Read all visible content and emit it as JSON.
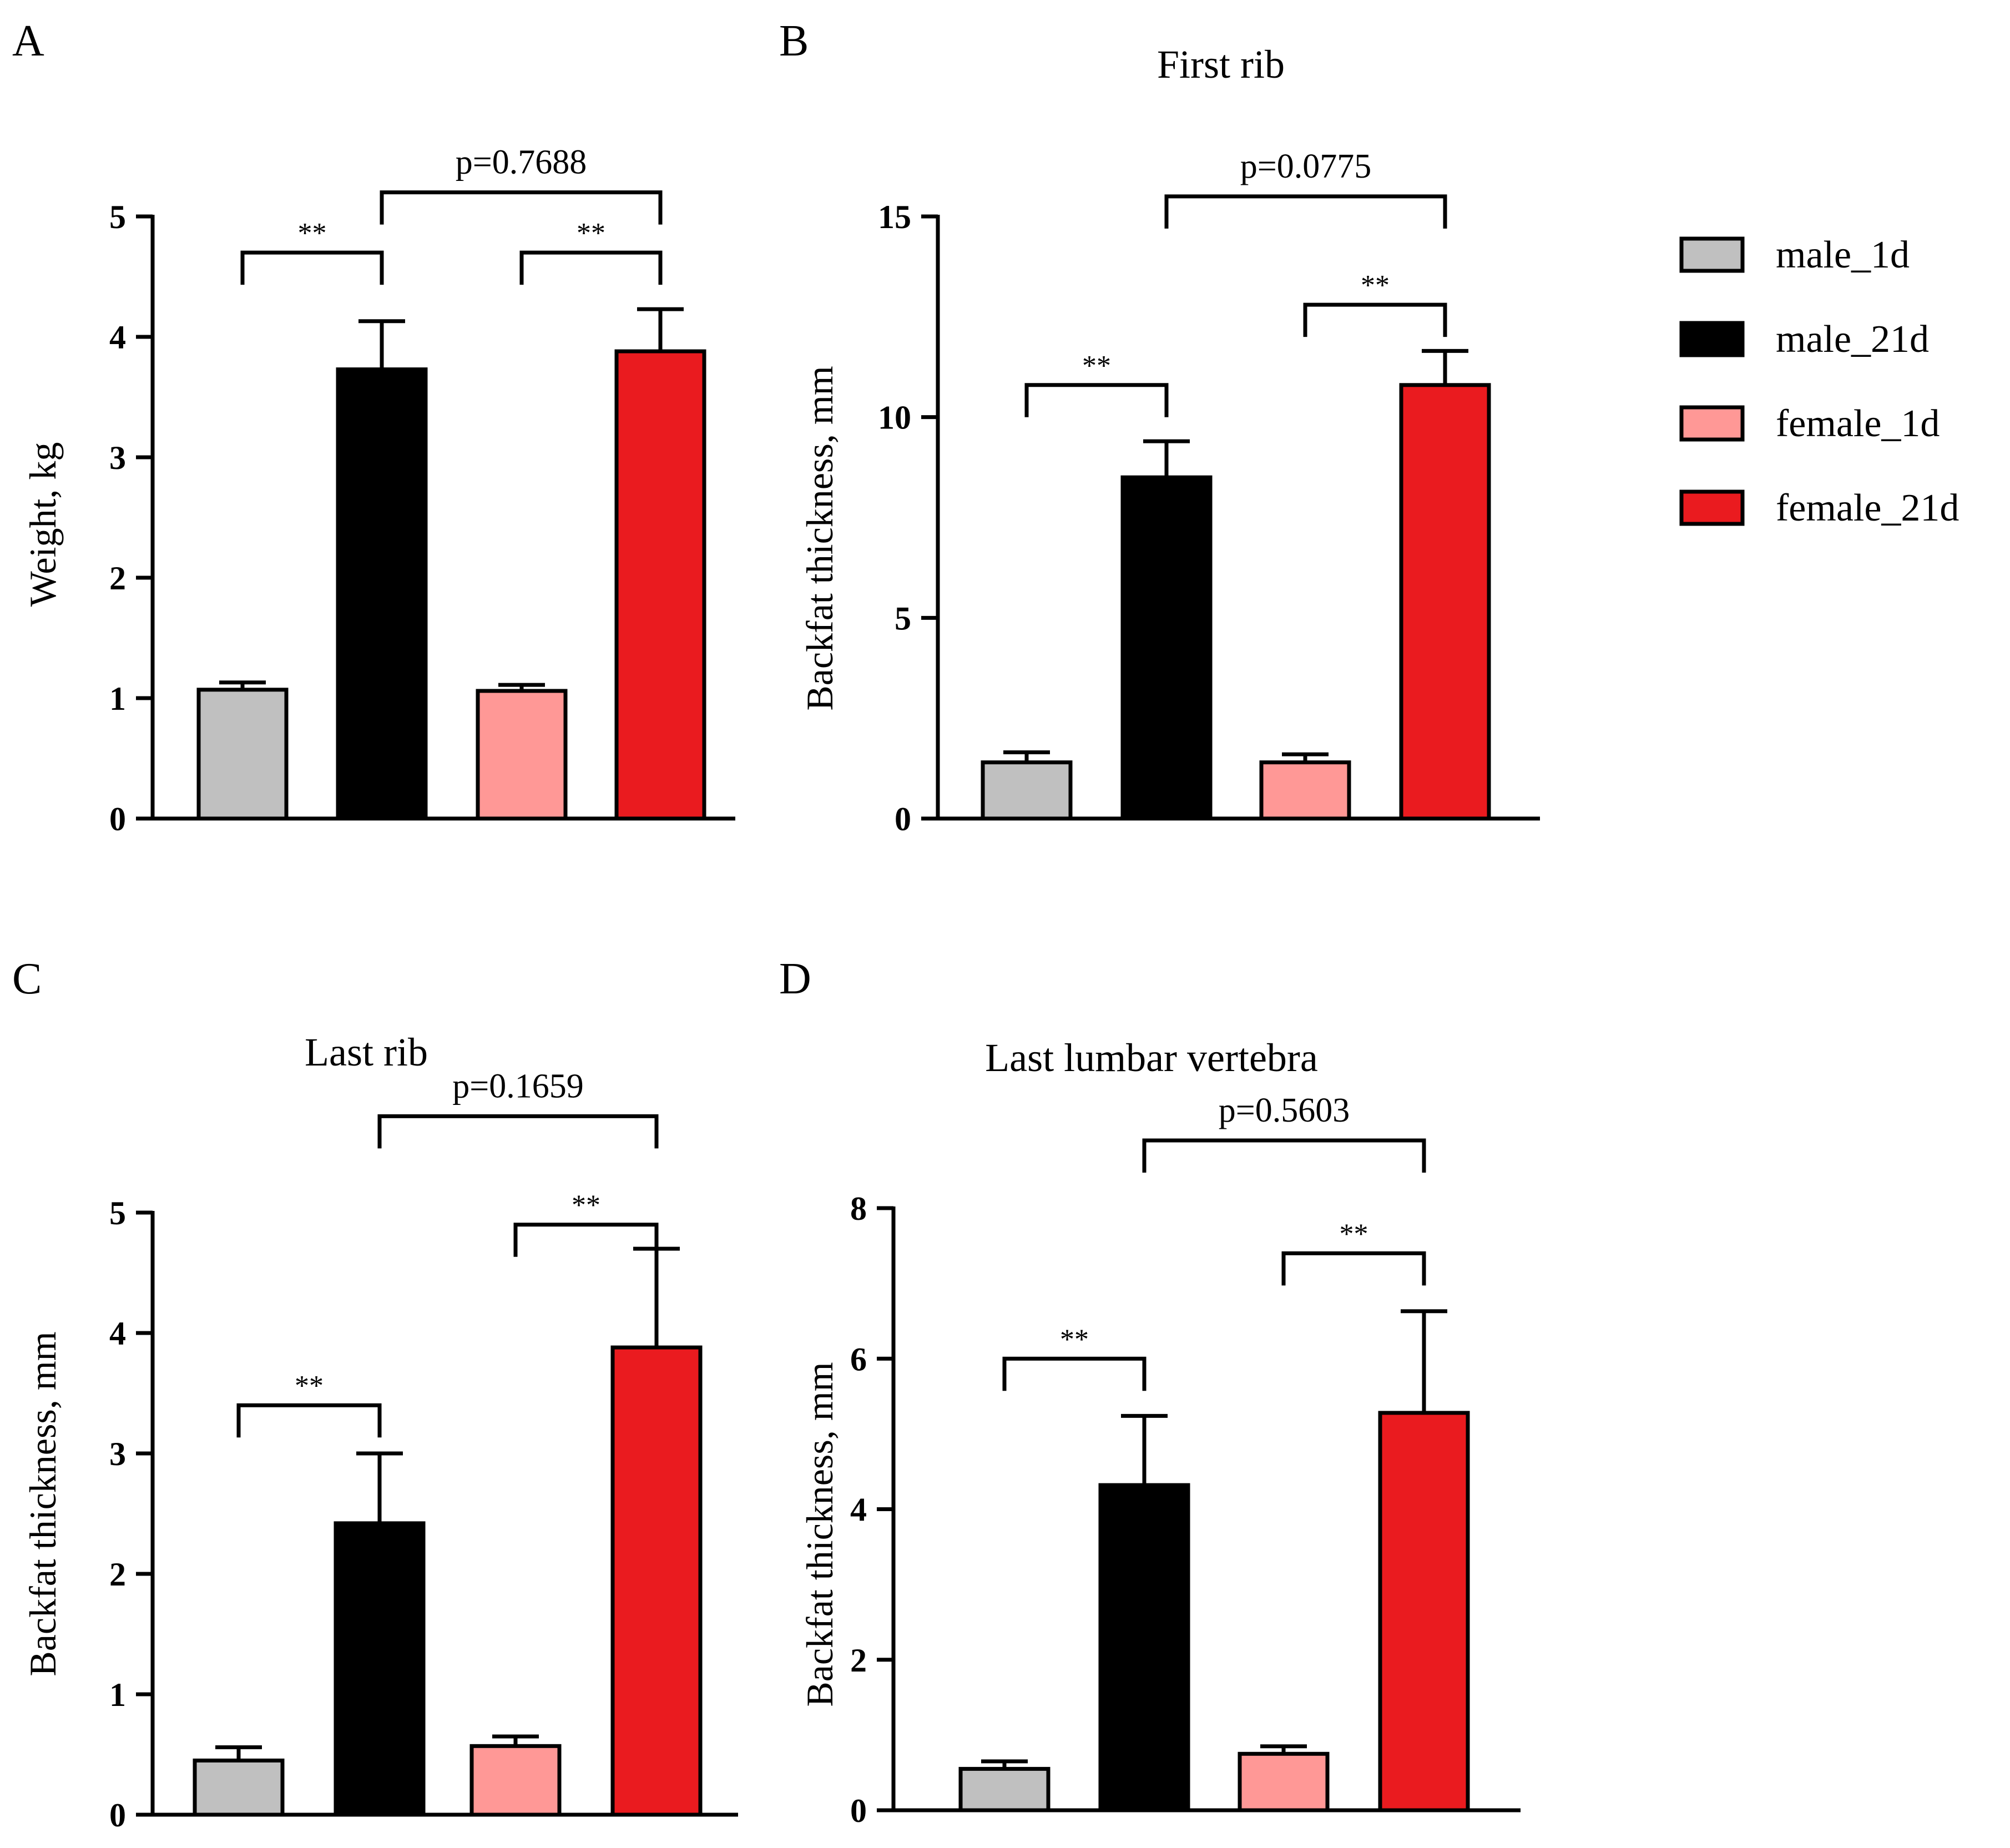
{
  "legend": [
    {
      "label": "male_1d",
      "color": "#c0c0c0"
    },
    {
      "label": "male_21d",
      "color": "#000000"
    },
    {
      "label": "female_1d",
      "color": "#ff9896"
    },
    {
      "label": "female_21d",
      "color": "#ea1b1f"
    }
  ],
  "chart_data": [
    {
      "panel": "A",
      "type": "bar",
      "title": "",
      "ylabel": "Weight, kg",
      "ylim": [
        0,
        5
      ],
      "yticks": [
        "0",
        "1",
        "2",
        "3",
        "4",
        "5"
      ],
      "categories": [
        "male_1d",
        "male_21d",
        "female_1d",
        "female_21d"
      ],
      "values": [
        1.07,
        3.73,
        1.06,
        3.88
      ],
      "errors": [
        0.06,
        0.4,
        0.05,
        0.35
      ],
      "brackets": [
        {
          "from": 0,
          "to": 1,
          "label": "**",
          "y": 4.7
        },
        {
          "from": 2,
          "to": 3,
          "label": "**",
          "y": 4.7
        },
        {
          "from": 1,
          "to": 3,
          "label": "p=0.7688",
          "y": 5.2
        }
      ]
    },
    {
      "panel": "B",
      "type": "bar",
      "title": "First rib",
      "ylabel": "Backfat thickness, mm",
      "ylim": [
        0,
        15
      ],
      "yticks": [
        "0",
        "5",
        "10",
        "15"
      ],
      "categories": [
        "male_1d",
        "male_21d",
        "female_1d",
        "female_21d"
      ],
      "values": [
        1.4,
        8.5,
        1.4,
        10.8
      ],
      "errors": [
        0.25,
        0.9,
        0.2,
        0.85
      ],
      "brackets": [
        {
          "from": 0,
          "to": 1,
          "label": "**",
          "y": 10.8
        },
        {
          "from": 2,
          "to": 3,
          "label": "**",
          "y": 12.8
        },
        {
          "from": 1,
          "to": 3,
          "label": "p=0.0775",
          "y": 15.5
        }
      ]
    },
    {
      "panel": "C",
      "type": "bar",
      "title": "Last rib",
      "ylabel": "Backfat thickness, mm",
      "ylim": [
        0,
        5
      ],
      "yticks": [
        "0",
        "1",
        "2",
        "3",
        "4",
        "5"
      ],
      "categories": [
        "male_1d",
        "male_21d",
        "female_1d",
        "female_21d"
      ],
      "values": [
        0.45,
        2.42,
        0.57,
        3.88
      ],
      "errors": [
        0.11,
        0.58,
        0.08,
        0.82
      ],
      "brackets": [
        {
          "from": 0,
          "to": 1,
          "label": "**",
          "y": 3.4
        },
        {
          "from": 2,
          "to": 3,
          "label": "**",
          "y": 4.9
        },
        {
          "from": 1,
          "to": 3,
          "label": "p=0.1659",
          "y": 5.8
        }
      ]
    },
    {
      "panel": "D",
      "type": "bar",
      "title": "Last lumbar vertebra",
      "ylabel": "Backfat thickness, mm",
      "ylim": [
        0,
        8
      ],
      "yticks": [
        "0",
        "2",
        "4",
        "6",
        "8"
      ],
      "categories": [
        "male_1d",
        "male_21d",
        "female_1d",
        "female_21d"
      ],
      "values": [
        0.55,
        4.32,
        0.75,
        5.28
      ],
      "errors": [
        0.1,
        0.92,
        0.1,
        1.35
      ],
      "brackets": [
        {
          "from": 0,
          "to": 1,
          "label": "**",
          "y": 6.0
        },
        {
          "from": 2,
          "to": 3,
          "label": "**",
          "y": 7.4
        },
        {
          "from": 1,
          "to": 3,
          "label": "p=0.5603",
          "y": 8.9
        }
      ]
    }
  ]
}
